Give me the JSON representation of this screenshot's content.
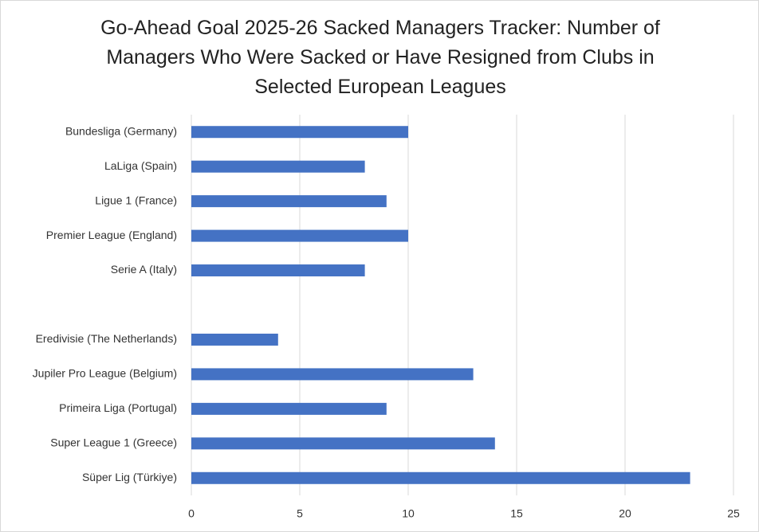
{
  "chart_data": {
    "type": "hbar",
    "title": "Go-Ahead Goal 2025-26 Sacked Managers Tracker: Number of Managers Who Were Sacked or Have Resigned from Clubs in Selected European Leagues",
    "categories": [
      "Bundesliga (Germany)",
      "LaLiga (Spain)",
      "Ligue 1 (France)",
      "Premier League (England)",
      "Serie A (Italy)",
      null,
      "Eredivisie (The Netherlands)",
      "Jupiler Pro League (Belgium)",
      "Primeira Liga (Portugal)",
      "Super League 1 (Greece)",
      "Süper Lig (Türkiye)"
    ],
    "values": [
      10,
      8,
      9,
      10,
      8,
      null,
      4,
      13,
      9,
      14,
      23
    ],
    "color": "#4472c4",
    "xlim": [
      0,
      25
    ],
    "xticks": [
      0,
      5,
      10,
      15,
      20,
      25
    ],
    "grid": true
  }
}
